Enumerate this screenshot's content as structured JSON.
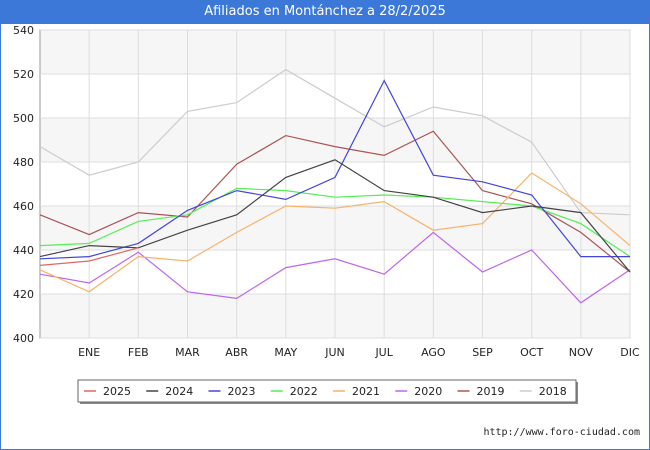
{
  "title": "Afiliados en Montánchez a 28/2/2025",
  "footer_url": "http://www.foro-ciudad.com",
  "chart_data": {
    "type": "line",
    "title": "Afiliados en Montánchez a 28/2/2025",
    "xlabel": "",
    "ylabel": "",
    "categories": [
      "",
      "ENE",
      "FEB",
      "MAR",
      "ABR",
      "MAY",
      "JUN",
      "JUL",
      "AGO",
      "SEP",
      "OCT",
      "NOV",
      "DIC"
    ],
    "ylim": [
      400,
      540
    ],
    "yticks": [
      400,
      420,
      440,
      460,
      480,
      500,
      520,
      540
    ],
    "grid": true,
    "legend_position": "bottom",
    "series": [
      {
        "name": "2025",
        "color": "#e06666",
        "values": [
          433,
          435,
          441,
          null,
          null,
          null,
          null,
          null,
          null,
          null,
          null,
          null,
          null
        ]
      },
      {
        "name": "2024",
        "color": "#444444",
        "values": [
          437,
          442,
          441,
          449,
          456,
          473,
          481,
          467,
          464,
          457,
          460,
          457,
          430
        ]
      },
      {
        "name": "2023",
        "color": "#4444dd",
        "values": [
          436,
          437,
          443,
          458,
          467,
          463,
          473,
          517,
          474,
          471,
          465,
          437,
          437
        ]
      },
      {
        "name": "2022",
        "color": "#55ee55",
        "values": [
          442,
          443,
          453,
          456,
          468,
          467,
          464,
          465,
          464,
          462,
          460,
          452,
          437
        ]
      },
      {
        "name": "2021",
        "color": "#f6b26b",
        "values": [
          431,
          421,
          437,
          435,
          448,
          460,
          459,
          462,
          449,
          452,
          475,
          461,
          442
        ]
      },
      {
        "name": "2020",
        "color": "#bb66ee",
        "values": [
          429,
          425,
          439,
          421,
          418,
          432,
          436,
          429,
          448,
          430,
          440,
          416,
          431
        ]
      },
      {
        "name": "2019",
        "color": "#aa5555",
        "values": [
          456,
          447,
          457,
          455,
          479,
          492,
          487,
          483,
          494,
          467,
          461,
          448,
          430
        ]
      },
      {
        "name": "2018",
        "color": "#cccccc",
        "values": [
          487,
          474,
          480,
          503,
          507,
          522,
          509,
          496,
          505,
          501,
          489,
          457,
          456
        ]
      }
    ]
  }
}
